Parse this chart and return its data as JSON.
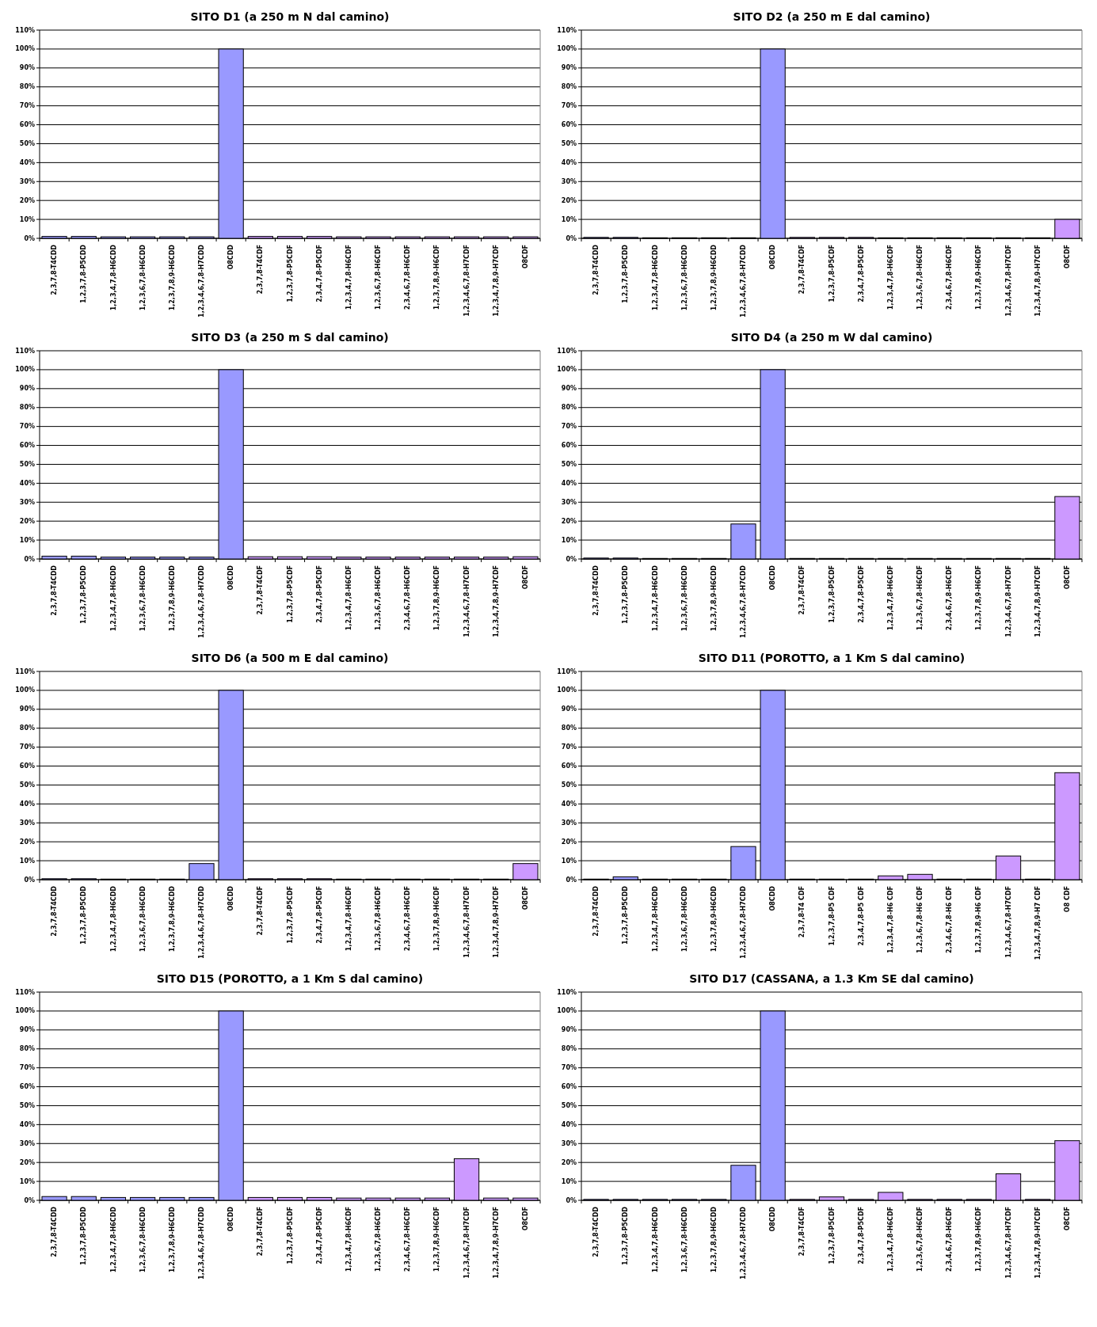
{
  "chart_data": [
    {
      "type": "bar",
      "title": "SITO D1 (a 250 m N dal camino)",
      "categories": [
        "2,3,7,8-T4CDD",
        "1,2,3,7,8-P5CDD",
        "1,2,3,4,7,8-H6CDD",
        "1,2,3,6,7,8-H6CDD",
        "1,2,3,7,8,9-H6CDD",
        "1,2,3,4,6,7,8-H7CDD",
        "O8CDD",
        "2,3,7,8-T4CDF",
        "1,2,3,7,8-P5CDF",
        "2,3,4,7,8-P5CDF",
        "1,2,3,4,7,8-H6CDF",
        "1,2,3,6,7,8-H6CDF",
        "2,3,4,6,7,8-H6CDF",
        "1,2,3,7,8,9-H6CDF",
        "1,2,3,4,6,7,8-H7CDF",
        "1,2,3,4,7,8,9-H7CDF",
        "O8CDF"
      ],
      "values": [
        1,
        1,
        0.8,
        0.8,
        0.8,
        0.8,
        100,
        1,
        1,
        1,
        0.8,
        0.8,
        0.8,
        0.8,
        0.8,
        0.8,
        0.8
      ],
      "colors": [
        "#9999ff",
        "#9999ff",
        "#9999ff",
        "#9999ff",
        "#9999ff",
        "#9999ff",
        "#9999ff",
        "#cc99ff",
        "#cc99ff",
        "#cc99ff",
        "#cc99ff",
        "#cc99ff",
        "#cc99ff",
        "#cc99ff",
        "#cc99ff",
        "#cc99ff",
        "#cc99ff"
      ],
      "ylim": [
        0,
        110
      ],
      "yticks": [
        {
          "value": 0,
          "label": "0%"
        },
        {
          "value": 10,
          "label": "10%"
        },
        {
          "value": 20,
          "label": "20%"
        },
        {
          "value": 30,
          "label": "30%"
        },
        {
          "value": 40,
          "label": "40%"
        },
        {
          "value": 50,
          "label": "50%"
        },
        {
          "value": 60,
          "label": "60%"
        },
        {
          "value": 70,
          "label": "70%"
        },
        {
          "value": 80,
          "label": "80%"
        },
        {
          "value": 90,
          "label": "90%"
        },
        {
          "value": 100,
          "label": "100%"
        },
        {
          "value": 110,
          "label": "110%"
        }
      ],
      "grid": "y"
    },
    {
      "type": "bar",
      "title": "SITO D2 (a 250 m E dal camino)",
      "categories": [
        "2,3,7,8-T4CDD",
        "1,2,3,7,8-P5CDD",
        "1,2,3,4,7,8-H6CDD",
        "1,2,3,6,7,8-H6CDD",
        "1,2,3,7,8,9-H6CDD",
        "1,2,3,4,6,7,8-H7CDD",
        "O8CDD",
        "2,3,7,8-T4CDF",
        "1,2,3,7,8-P5CDF",
        "2,3,4,7,8-P5CDF",
        "1,2,3,4,7,8-H6CDF",
        "1,2,3,6,7,8-H6CDF",
        "2,3,4,6,7,8-H6CDF",
        "1,2,3,7,8,9-H6CDF",
        "1,2,3,4,6,7,8-H7CDF",
        "1,2,3,4,7,8,9-H7CDF",
        "O8CDF"
      ],
      "values": [
        0.5,
        0.5,
        0.3,
        0.3,
        0.3,
        0.3,
        100,
        0.5,
        0.5,
        0.5,
        0.3,
        0.3,
        0.3,
        0.3,
        0.3,
        0.3,
        10
      ],
      "colors": [
        "#9999ff",
        "#9999ff",
        "#9999ff",
        "#9999ff",
        "#9999ff",
        "#9999ff",
        "#9999ff",
        "#cc99ff",
        "#cc99ff",
        "#cc99ff",
        "#cc99ff",
        "#cc99ff",
        "#cc99ff",
        "#cc99ff",
        "#cc99ff",
        "#cc99ff",
        "#cc99ff"
      ],
      "ylim": [
        0,
        110
      ],
      "yticks": [
        {
          "value": 0,
          "label": "0%"
        },
        {
          "value": 10,
          "label": "10%"
        },
        {
          "value": 20,
          "label": "20%"
        },
        {
          "value": 30,
          "label": "30%"
        },
        {
          "value": 40,
          "label": "40%"
        },
        {
          "value": 50,
          "label": "50%"
        },
        {
          "value": 60,
          "label": "60%"
        },
        {
          "value": 70,
          "label": "70%"
        },
        {
          "value": 80,
          "label": "80%"
        },
        {
          "value": 90,
          "label": "90%"
        },
        {
          "value": 100,
          "label": "100%"
        },
        {
          "value": 110,
          "label": "110%"
        }
      ],
      "grid": "y"
    },
    {
      "type": "bar",
      "title": "SITO D3 (a 250 m S dal camino)",
      "categories": [
        "2,3,7,8-T4CDD",
        "1,2,3,7,8-P5CDD",
        "1,2,3,4,7,8-H6CDD",
        "1,2,3,6,7,8-H6CDD",
        "1,2,3,7,8,9-H6CDD",
        "1,2,3,4,6,7,8-H7CDD",
        "O8CDD",
        "2,3,7,8-T4CDF",
        "1,2,3,7,8-P5CDF",
        "2,3,4,7,8-P5CDF",
        "1,2,3,4,7,8-H6CDF",
        "1,2,3,6,7,8-H6CDF",
        "2,3,4,6,7,8-H6CDF",
        "1,2,3,7,8,9-H6CDF",
        "1,2,3,4,6,7,8-H7CDF",
        "1,2,3,4,7,8,9-H7CDF",
        "O8CDF"
      ],
      "values": [
        1.5,
        1.5,
        1,
        1,
        1,
        1,
        100,
        1.2,
        1.2,
        1.2,
        1,
        1,
        1,
        1,
        1,
        1,
        1.2
      ],
      "colors": [
        "#9999ff",
        "#9999ff",
        "#9999ff",
        "#9999ff",
        "#9999ff",
        "#9999ff",
        "#9999ff",
        "#cc99ff",
        "#cc99ff",
        "#cc99ff",
        "#cc99ff",
        "#cc99ff",
        "#cc99ff",
        "#cc99ff",
        "#cc99ff",
        "#cc99ff",
        "#cc99ff"
      ],
      "ylim": [
        0,
        110
      ],
      "yticks": [
        {
          "value": 0,
          "label": "0%"
        },
        {
          "value": 10,
          "label": "10%"
        },
        {
          "value": 20,
          "label": "20%"
        },
        {
          "value": 30,
          "label": "30%"
        },
        {
          "value": 40,
          "label": "40%"
        },
        {
          "value": 50,
          "label": "50%"
        },
        {
          "value": 60,
          "label": "60%"
        },
        {
          "value": 70,
          "label": "70%"
        },
        {
          "value": 80,
          "label": "80%"
        },
        {
          "value": 90,
          "label": "90%"
        },
        {
          "value": 100,
          "label": "100%"
        },
        {
          "value": 110,
          "label": "110%"
        }
      ],
      "grid": "y"
    },
    {
      "type": "bar",
      "title": "SITO D4 (a 250 m W dal camino)",
      "categories": [
        "2,3,7,8-T4CDD",
        "1,2,3,7,8-P5CDD",
        "1,2,3,4,7,8-H6CDD",
        "1,2,3,6,7,8-H6CDD",
        "1,2,3,7,8,9-H6CDD",
        "1,2,3,4,6,7,8-H7CDD",
        "O8CDD",
        "2,3,7,8-T4CDF",
        "1,2,3,7,8-P5CDF",
        "2,3,4,7,8-P5CDF",
        "1,2,3,4,7,8-H6CDF",
        "1,2,3,6,7,8-H6CDF",
        "2,3,4,6,7,8-H6CDF",
        "1,2,3,7,8,9-H6CDF",
        "1,2,3,4,6,7,8-H7CDF",
        "1,2,3,4,7,8,9-H7CDF",
        "O8CDF"
      ],
      "values": [
        0.5,
        0.5,
        0.3,
        0.3,
        0.3,
        18.5,
        100,
        0.3,
        0.3,
        0.3,
        0.3,
        0.3,
        0.3,
        0.3,
        0.3,
        0.3,
        33
      ],
      "colors": [
        "#9999ff",
        "#9999ff",
        "#9999ff",
        "#9999ff",
        "#9999ff",
        "#9999ff",
        "#9999ff",
        "#cc99ff",
        "#cc99ff",
        "#cc99ff",
        "#cc99ff",
        "#cc99ff",
        "#cc99ff",
        "#cc99ff",
        "#cc99ff",
        "#cc99ff",
        "#cc99ff"
      ],
      "ylim": [
        0,
        110
      ],
      "yticks": [
        {
          "value": 0,
          "label": "0%"
        },
        {
          "value": 10,
          "label": "10%"
        },
        {
          "value": 20,
          "label": "20%"
        },
        {
          "value": 30,
          "label": "30%"
        },
        {
          "value": 40,
          "label": "40%"
        },
        {
          "value": 50,
          "label": "50%"
        },
        {
          "value": 60,
          "label": "60%"
        },
        {
          "value": 70,
          "label": "70%"
        },
        {
          "value": 80,
          "label": "80%"
        },
        {
          "value": 90,
          "label": "90%"
        },
        {
          "value": 100,
          "label": "100%"
        },
        {
          "value": 110,
          "label": "110%"
        }
      ],
      "grid": "y"
    },
    {
      "type": "bar",
      "title": "SITO D6 (a 500 m E dal camino)",
      "categories": [
        "2,3,7,8-T4CDD",
        "1,2,3,7,8-P5CDD",
        "1,2,3,4,7,8-H6CDD",
        "1,2,3,6,7,8-H6CDD",
        "1,2,3,7,8,9-H6CDD",
        "1,2,3,4,6,7,8-H7CDD",
        "O8CDD",
        "2,3,7,8-T4CDF",
        "1,2,3,7,8-P5CDF",
        "2,3,4,7,8-P5CDF",
        "1,2,3,4,7,8-H6CDF",
        "1,2,3,6,7,8-H6CDF",
        "2,3,4,6,7,8-H6CDF",
        "1,2,3,7,8,9-H6CDF",
        "1,2,3,4,6,7,8-H7CDF",
        "1,2,3,4,7,8,9-H7CDF",
        "O8CDF"
      ],
      "values": [
        0.5,
        0.5,
        0.3,
        0.3,
        0.3,
        8.5,
        100,
        0.5,
        0.5,
        0.5,
        0.3,
        0.3,
        0.3,
        0.3,
        0.3,
        0.3,
        8.5
      ],
      "colors": [
        "#9999ff",
        "#9999ff",
        "#9999ff",
        "#9999ff",
        "#9999ff",
        "#9999ff",
        "#9999ff",
        "#cc99ff",
        "#cc99ff",
        "#cc99ff",
        "#cc99ff",
        "#cc99ff",
        "#cc99ff",
        "#cc99ff",
        "#cc99ff",
        "#cc99ff",
        "#cc99ff"
      ],
      "ylim": [
        0,
        110
      ],
      "yticks": [
        {
          "value": 0,
          "label": "0%"
        },
        {
          "value": 10,
          "label": "10%"
        },
        {
          "value": 20,
          "label": "20%"
        },
        {
          "value": 30,
          "label": "30%"
        },
        {
          "value": 40,
          "label": "40%"
        },
        {
          "value": 50,
          "label": "50%"
        },
        {
          "value": 60,
          "label": "60%"
        },
        {
          "value": 70,
          "label": "70%"
        },
        {
          "value": 80,
          "label": "80%"
        },
        {
          "value": 90,
          "label": "90%"
        },
        {
          "value": 100,
          "label": "100%"
        },
        {
          "value": 110,
          "label": "110%"
        }
      ],
      "grid": "y"
    },
    {
      "type": "bar",
      "title": "SITO D11 (POROTTO, a 1 Km S dal camino)",
      "categories": [
        "2,3,7,8-T4CDD",
        "1,2,3,7,8-P5CDD",
        "1,2,3,4,7,8-H6CDD",
        "1,2,3,6,7,8-H6CDD",
        "1,2,3,7,8,9-H6CDD",
        "1,2,3,4,6,7,8-H7CDD",
        "O8CDD",
        "2,3,7,8-T4 CDF",
        "1,2,3,7,8-P5 CDF",
        "2,3,4,7,8-P5 CDF",
        "1,2,3,4,7,8-H6 CDF",
        "1,2,3,6,7,8-H6 CDF",
        "2,3,4,6,7,8-H6 CDF",
        "1,2,3,7,8,9-H6 CDF",
        "1,2,3,4,6,7,8-H7CDF",
        "1,2,3,4,7,8,9-H7 CDF",
        "O8 CDF"
      ],
      "values": [
        0.3,
        1.5,
        0.3,
        0.3,
        0.3,
        17.5,
        100,
        0.3,
        0.3,
        0.3,
        2,
        2.8,
        0.3,
        0.3,
        12.5,
        0.3,
        56.5
      ],
      "colors": [
        "#9999ff",
        "#9999ff",
        "#9999ff",
        "#9999ff",
        "#9999ff",
        "#9999ff",
        "#9999ff",
        "#cc99ff",
        "#cc99ff",
        "#cc99ff",
        "#cc99ff",
        "#cc99ff",
        "#cc99ff",
        "#cc99ff",
        "#cc99ff",
        "#cc99ff",
        "#cc99ff"
      ],
      "ylim": [
        0,
        110
      ],
      "yticks": [
        {
          "value": 0,
          "label": "0%"
        },
        {
          "value": 10,
          "label": "10%"
        },
        {
          "value": 20,
          "label": "20%"
        },
        {
          "value": 30,
          "label": "30%"
        },
        {
          "value": 40,
          "label": "40%"
        },
        {
          "value": 50,
          "label": "50%"
        },
        {
          "value": 60,
          "label": "60%"
        },
        {
          "value": 70,
          "label": "70%"
        },
        {
          "value": 80,
          "label": "80%"
        },
        {
          "value": 90,
          "label": "90%"
        },
        {
          "value": 100,
          "label": "100%"
        },
        {
          "value": 110,
          "label": "110%"
        }
      ],
      "grid": "y"
    },
    {
      "type": "bar",
      "title": "SITO D15 (POROTTO, a 1 Km S dal camino)",
      "categories": [
        "2,3,7,8-T4CDD",
        "1,2,3,7,8-P5CDD",
        "1,2,3,4,7,8-H6CDD",
        "1,2,3,6,7,8-H6CDD",
        "1,2,3,7,8,9-H6CDD",
        "1,2,3,4,6,7,8-H7CDD",
        "O8CDD",
        "2,3,7,8-T4CDF",
        "1,2,3,7,8-P5CDF",
        "2,3,4,7,8-P5CDF",
        "1,2,3,4,7,8-H6CDF",
        "1,2,3,6,7,8-H6CDF",
        "2,3,4,6,7,8-H6CDF",
        "1,2,3,7,8,9-H6CDF",
        "1,2,3,4,6,7,8-H7CDF",
        "1,2,3,4,7,8,9-H7CDF",
        "O8CDF"
      ],
      "values": [
        2,
        2,
        1.5,
        1.5,
        1.5,
        1.5,
        100,
        1.5,
        1.5,
        1.5,
        1.2,
        1.2,
        1.2,
        1.2,
        22,
        1.2,
        1.2
      ],
      "colors": [
        "#9999ff",
        "#9999ff",
        "#9999ff",
        "#9999ff",
        "#9999ff",
        "#9999ff",
        "#9999ff",
        "#cc99ff",
        "#cc99ff",
        "#cc99ff",
        "#cc99ff",
        "#cc99ff",
        "#cc99ff",
        "#cc99ff",
        "#cc99ff",
        "#cc99ff",
        "#cc99ff"
      ],
      "ylim": [
        0,
        110
      ],
      "yticks": [
        {
          "value": 0,
          "label": "0%"
        },
        {
          "value": 10,
          "label": "10%"
        },
        {
          "value": 20,
          "label": "20%"
        },
        {
          "value": 30,
          "label": "30%"
        },
        {
          "value": 40,
          "label": "40%"
        },
        {
          "value": 50,
          "label": "50%"
        },
        {
          "value": 60,
          "label": "60%"
        },
        {
          "value": 70,
          "label": "70%"
        },
        {
          "value": 80,
          "label": "80%"
        },
        {
          "value": 90,
          "label": "90%"
        },
        {
          "value": 100,
          "label": "100%"
        },
        {
          "value": 110,
          "label": "110%"
        }
      ],
      "grid": "y"
    },
    {
      "type": "bar",
      "title": "SITO D17 (CASSANA, a 1.3 Km SE dal camino)",
      "categories": [
        "2,3,7,8-T4CDD",
        "1,2,3,7,8-P5CDD",
        "1,2,3,4,7,8-H6CDD",
        "1,2,3,6,7,8-H6CDD",
        "1,2,3,7,8,9-H6CDD",
        "1,2,3,4,6,7,8-H7CDD",
        "O8CDD",
        "2,3,7,8-T4CDF",
        "1,2,3,7,8-P5CDF",
        "2,3,4,7,8-P5CDF",
        "1,2,3,4,7,8-H6CDF",
        "1,2,3,6,7,8-H6CDF",
        "2,3,4,6,7,8-H6CDF",
        "1,2,3,7,8,9-H6CDF",
        "1,2,3,4,6,7,8-H7CDF",
        "1,2,3,4,7,8,9-H7CDF",
        "O8CDF"
      ],
      "values": [
        0.5,
        0.5,
        0.5,
        0.5,
        0.5,
        18.5,
        100,
        0.5,
        1.8,
        0.5,
        4.2,
        0.5,
        0.5,
        0.5,
        14,
        0.5,
        31.5
      ],
      "colors": [
        "#9999ff",
        "#9999ff",
        "#9999ff",
        "#9999ff",
        "#9999ff",
        "#9999ff",
        "#9999ff",
        "#cc99ff",
        "#cc99ff",
        "#cc99ff",
        "#cc99ff",
        "#cc99ff",
        "#cc99ff",
        "#cc99ff",
        "#cc99ff",
        "#cc99ff",
        "#cc99ff"
      ],
      "ylim": [
        0,
        110
      ],
      "yticks": [
        {
          "value": 0,
          "label": "0%"
        },
        {
          "value": 10,
          "label": "10%"
        },
        {
          "value": 20,
          "label": "20%"
        },
        {
          "value": 30,
          "label": "30%"
        },
        {
          "value": 40,
          "label": "40%"
        },
        {
          "value": 50,
          "label": "50%"
        },
        {
          "value": 60,
          "label": "60%"
        },
        {
          "value": 70,
          "label": "70%"
        },
        {
          "value": 80,
          "label": "80%"
        },
        {
          "value": 90,
          "label": "90%"
        },
        {
          "value": 100,
          "label": "100%"
        },
        {
          "value": 110,
          "label": "110%"
        }
      ],
      "grid": "y"
    }
  ]
}
